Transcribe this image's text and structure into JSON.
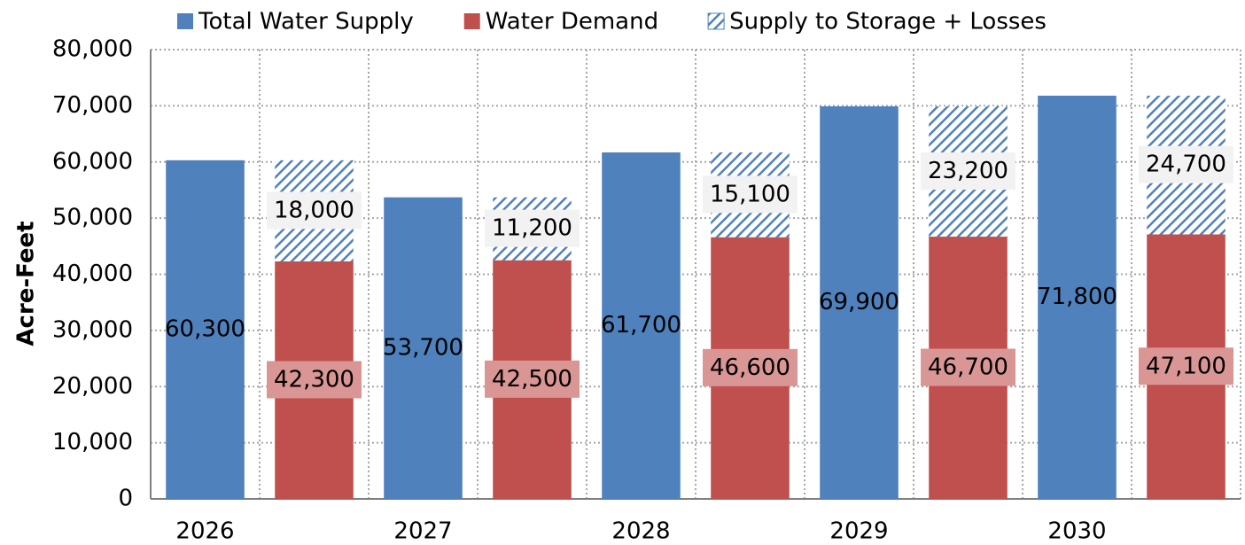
{
  "chart_data": {
    "type": "bar",
    "categories": [
      "2026",
      "2027",
      "2028",
      "2029",
      "2030"
    ],
    "y_label": "Acre-Feet",
    "ylim": [
      0,
      80000
    ],
    "yticks": [
      0,
      {
        "value": 10000,
        "label": "10,000"
      },
      {
        "value": 20000,
        "label": "20,000"
      },
      {
        "value": 30000,
        "label": "30,000"
      },
      {
        "value": 40000,
        "label": "40,000"
      },
      {
        "value": 50000,
        "label": "50,000"
      },
      {
        "value": 60000,
        "label": "60,000"
      },
      {
        "value": 70000,
        "label": "70,000"
      },
      {
        "value": 80000,
        "label": "80,000"
      }
    ],
    "grid": true,
    "legend": "top",
    "series": [
      {
        "name": "Total Water Supply",
        "color": "#4f81bd",
        "values": [
          60300,
          53700,
          61700,
          69900,
          71800
        ],
        "value_labels": [
          "60,300",
          "53,700",
          "61,700",
          "69,900",
          "71,800"
        ]
      },
      {
        "name": "Water Demand",
        "color": "#c0504d",
        "values": [
          42300,
          42500,
          46600,
          46700,
          47100
        ],
        "value_labels": [
          "42,300",
          "42,500",
          "46,600",
          "46,700",
          "47,100"
        ],
        "label_box": "#d99694"
      },
      {
        "name": "Supply to Storage + Losses",
        "color": "#4f81bd",
        "hatch": true,
        "stack": true,
        "values": [
          18000,
          11200,
          15100,
          23200,
          24700
        ],
        "value_labels": [
          "18,000",
          "11,200",
          "15,100",
          "23,200",
          "24,700"
        ],
        "label_box": "#f2f2f2"
      }
    ]
  }
}
